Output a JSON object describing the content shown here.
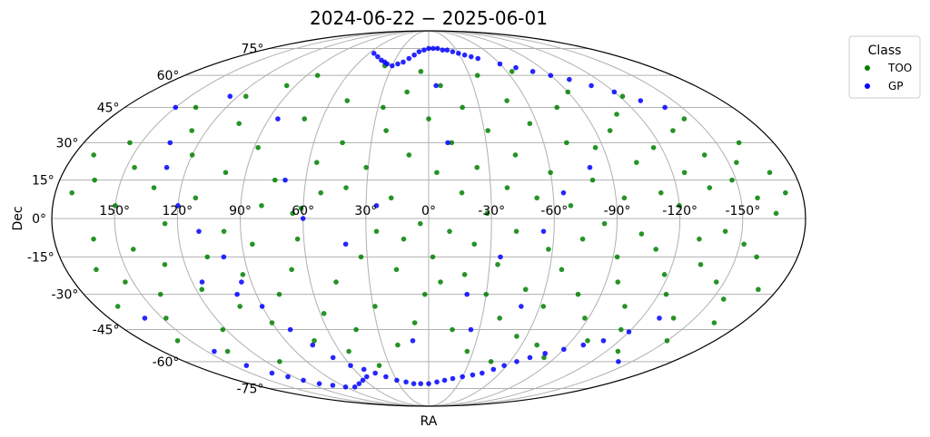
{
  "chart_data": {
    "type": "scatter",
    "projection": "mollweide",
    "title": "2024-06-22 − 2025-06-01",
    "xlabel": "RA",
    "ylabel": "Dec",
    "grid": true,
    "ra_ticks": [
      {
        "ra": 150,
        "label": "150°"
      },
      {
        "ra": 120,
        "label": "120°"
      },
      {
        "ra": 90,
        "label": "90°"
      },
      {
        "ra": 60,
        "label": "60°"
      },
      {
        "ra": 30,
        "label": "30°"
      },
      {
        "ra": 0,
        "label": "0°"
      },
      {
        "ra": -30,
        "label": "-30°"
      },
      {
        "ra": -60,
        "label": "-60°"
      },
      {
        "ra": -90,
        "label": "-90°"
      },
      {
        "ra": -120,
        "label": "-120°"
      },
      {
        "ra": -150,
        "label": "-150°"
      }
    ],
    "dec_ticks": [
      {
        "dec": 75,
        "label": "75°"
      },
      {
        "dec": 60,
        "label": "60°"
      },
      {
        "dec": 45,
        "label": "45°"
      },
      {
        "dec": 30,
        "label": "30°"
      },
      {
        "dec": 15,
        "label": "15°"
      },
      {
        "dec": 0,
        "label": "0°"
      },
      {
        "dec": -15,
        "label": "-15°"
      },
      {
        "dec": -30,
        "label": "-30°"
      },
      {
        "dec": -45,
        "label": "-45°"
      },
      {
        "dec": -60,
        "label": "-60°"
      },
      {
        "dec": -75,
        "label": "-75°"
      }
    ],
    "legend": {
      "title": "Class",
      "placement": "outside-upper-right"
    },
    "series": [
      {
        "name": "TOO",
        "color": "#008000",
        "points": [
          [
            172,
            10
          ],
          [
            170,
            25
          ],
          [
            168,
            -35
          ],
          [
            165,
            -20
          ],
          [
            163,
            15
          ],
          [
            161,
            -8
          ],
          [
            158,
            -50
          ],
          [
            156,
            30
          ],
          [
            154,
            -25
          ],
          [
            150,
            5
          ],
          [
            148,
            -40
          ],
          [
            146,
            20
          ],
          [
            143,
            -12
          ],
          [
            140,
            -30
          ],
          [
            138,
            45
          ],
          [
            136,
            -55
          ],
          [
            133,
            12
          ],
          [
            130,
            -18
          ],
          [
            128,
            35
          ],
          [
            126,
            -2
          ],
          [
            122,
            -45
          ],
          [
            120,
            25
          ],
          [
            117,
            -28
          ],
          [
            115,
            50
          ],
          [
            112,
            8
          ],
          [
            110,
            -60
          ],
          [
            108,
            -15
          ],
          [
            105,
            38
          ],
          [
            102,
            -35
          ],
          [
            100,
            18
          ],
          [
            98,
            -5
          ],
          [
            96,
            55
          ],
          [
            93,
            -22
          ],
          [
            90,
            -42
          ],
          [
            88,
            28
          ],
          [
            85,
            -10
          ],
          [
            82,
            60
          ],
          [
            80,
            5
          ],
          [
            78,
            -30
          ],
          [
            75,
            15
          ],
          [
            72,
            -50
          ],
          [
            70,
            40
          ],
          [
            68,
            -20
          ],
          [
            65,
            2
          ],
          [
            63,
            -8
          ],
          [
            61,
            4
          ],
          [
            58,
            -38
          ],
          [
            56,
            22
          ],
          [
            54,
            -55
          ],
          [
            52,
            10
          ],
          [
            50,
            48
          ],
          [
            47,
            -25
          ],
          [
            45,
            30
          ],
          [
            43,
            -45
          ],
          [
            40,
            12
          ],
          [
            38,
            -62
          ],
          [
            36,
            65
          ],
          [
            33,
            -15
          ],
          [
            31,
            20
          ],
          [
            29,
            -35
          ],
          [
            27,
            45
          ],
          [
            25,
            -5
          ],
          [
            23,
            35
          ],
          [
            20,
            -52
          ],
          [
            18,
            8
          ],
          [
            16,
            -20
          ],
          [
            14,
            52
          ],
          [
            12,
            -8
          ],
          [
            10,
            25
          ],
          [
            8,
            -42
          ],
          [
            6,
            62
          ],
          [
            4,
            -2
          ],
          [
            2,
            -30
          ],
          [
            0,
            40
          ],
          [
            -2,
            -15
          ],
          [
            -4,
            18
          ],
          [
            -6,
            -25
          ],
          [
            -8,
            55
          ],
          [
            -10,
            -5
          ],
          [
            -12,
            30
          ],
          [
            -14,
            -45
          ],
          [
            -16,
            10
          ],
          [
            -18,
            -22
          ],
          [
            -20,
            45
          ],
          [
            -22,
            -10
          ],
          [
            -24,
            20
          ],
          [
            -26,
            -55
          ],
          [
            -28,
            2
          ],
          [
            -30,
            -30
          ],
          [
            -32,
            35
          ],
          [
            -34,
            -18
          ],
          [
            -36,
            60
          ],
          [
            -38,
            12
          ],
          [
            -40,
            -40
          ],
          [
            -42,
            -5
          ],
          [
            -44,
            25
          ],
          [
            -46,
            -60
          ],
          [
            -48,
            48
          ],
          [
            -50,
            -28
          ],
          [
            -52,
            8
          ],
          [
            -54,
            -48
          ],
          [
            -56,
            38
          ],
          [
            -58,
            -12
          ],
          [
            -60,
            18
          ],
          [
            -62,
            -35
          ],
          [
            -64,
            62
          ],
          [
            -66,
            -20
          ],
          [
            -68,
            5
          ],
          [
            -70,
            -52
          ],
          [
            -72,
            30
          ],
          [
            -74,
            -8
          ],
          [
            -76,
            45
          ],
          [
            -78,
            -30
          ],
          [
            -80,
            15
          ],
          [
            -82,
            -58
          ],
          [
            -84,
            -2
          ],
          [
            -86,
            28
          ],
          [
            -88,
            -40
          ],
          [
            -90,
            52
          ],
          [
            -92,
            -15
          ],
          [
            -94,
            8
          ],
          [
            -96,
            -25
          ],
          [
            -98,
            35
          ],
          [
            -100,
            -50
          ],
          [
            -102,
            -6
          ],
          [
            -104,
            22
          ],
          [
            -106,
            -35
          ],
          [
            -108,
            42
          ],
          [
            -110,
            -12
          ],
          [
            -112,
            10
          ],
          [
            -114,
            -45
          ],
          [
            -116,
            28
          ],
          [
            -118,
            -22
          ],
          [
            -120,
            5
          ],
          [
            -122,
            50
          ],
          [
            -124,
            -30
          ],
          [
            -126,
            18
          ],
          [
            -128,
            -55
          ],
          [
            -130,
            -8
          ],
          [
            -132,
            35
          ],
          [
            -134,
            -18
          ],
          [
            -136,
            12
          ],
          [
            -138,
            -40
          ],
          [
            -140,
            25
          ],
          [
            -142,
            -5
          ],
          [
            -144,
            40
          ],
          [
            -146,
            -25
          ],
          [
            -148,
            15
          ],
          [
            -150,
            -50
          ],
          [
            -152,
            -10
          ],
          [
            -154,
            22
          ],
          [
            -156,
            -32
          ],
          [
            -158,
            8
          ],
          [
            -160,
            -15
          ],
          [
            -162,
            30
          ],
          [
            -164,
            -42
          ],
          [
            -166,
            2
          ],
          [
            -168,
            18
          ],
          [
            -170,
            -28
          ],
          [
            -172,
            10
          ]
        ]
      },
      {
        "name": "GP",
        "color": "#0000ff",
        "points": [
          [
            55,
            72
          ],
          [
            48,
            70
          ],
          [
            42,
            68
          ],
          [
            38,
            67
          ],
          [
            35,
            66
          ],
          [
            30,
            65
          ],
          [
            26,
            66
          ],
          [
            22,
            67
          ],
          [
            18,
            69
          ],
          [
            14,
            71
          ],
          [
            10,
            73
          ],
          [
            5,
            74
          ],
          [
            0,
            75
          ],
          [
            -5,
            75
          ],
          [
            -10,
            75
          ],
          [
            -15,
            74
          ],
          [
            -20,
            74
          ],
          [
            -25,
            73
          ],
          [
            -30,
            72
          ],
          [
            -35,
            71
          ],
          [
            -40,
            70
          ],
          [
            -45,
            69
          ],
          [
            -60,
            66
          ],
          [
            -70,
            64
          ],
          [
            -80,
            62
          ],
          [
            -90,
            60
          ],
          [
            -100,
            58
          ],
          [
            -110,
            55
          ],
          [
            -120,
            52
          ],
          [
            -130,
            48
          ],
          [
            -140,
            45
          ],
          [
            150,
            45
          ],
          [
            135,
            30
          ],
          [
            130,
            20
          ],
          [
            120,
            5
          ],
          [
            110,
            -5
          ],
          [
            100,
            -15
          ],
          [
            95,
            -25
          ],
          [
            90,
            -35
          ],
          [
            82,
            -45
          ],
          [
            75,
            -52
          ],
          [
            68,
            -58
          ],
          [
            60,
            -62
          ],
          [
            52,
            -64
          ],
          [
            45,
            -66
          ],
          [
            38,
            -68
          ],
          [
            30,
            -70
          ],
          [
            22,
            -71
          ],
          [
            15,
            -72
          ],
          [
            8,
            -72
          ],
          [
            0,
            -72
          ],
          [
            -8,
            -71
          ],
          [
            -15,
            -70
          ],
          [
            -22,
            -69
          ],
          [
            -30,
            -68
          ],
          [
            -38,
            -67
          ],
          [
            -45,
            -66
          ],
          [
            -52,
            -64
          ],
          [
            -58,
            -62
          ],
          [
            -65,
            -60
          ],
          [
            -72,
            -58
          ],
          [
            -80,
            -56
          ],
          [
            -90,
            -54
          ],
          [
            -100,
            -52
          ],
          [
            -110,
            -50
          ],
          [
            -120,
            -46
          ],
          [
            -130,
            -40
          ],
          [
            145,
            -55
          ],
          [
            140,
            -62
          ],
          [
            132,
            -66
          ],
          [
            125,
            -68
          ],
          [
            118,
            -70
          ],
          [
            110,
            -72
          ],
          [
            100,
            -73
          ],
          [
            90,
            -74
          ],
          [
            80,
            -74
          ],
          [
            70,
            -72
          ],
          [
            62,
            -70
          ],
          [
            55,
            -68
          ],
          [
            -20,
            -30
          ],
          [
            -35,
            -15
          ],
          [
            -55,
            -5
          ],
          [
            -65,
            10
          ],
          [
            -80,
            20
          ],
          [
            25,
            5
          ],
          [
            40,
            -10
          ],
          [
            60,
            0
          ],
          [
            70,
            15
          ],
          [
            85,
            40
          ],
          [
            100,
            -30
          ],
          [
            115,
            -25
          ],
          [
            125,
            50
          ],
          [
            -10,
            30
          ],
          [
            -25,
            -45
          ],
          [
            -50,
            -35
          ],
          [
            -140,
            -60
          ],
          [
            160,
            -40
          ],
          [
            10,
            -50
          ],
          [
            -5,
            55
          ]
        ]
      }
    ]
  }
}
